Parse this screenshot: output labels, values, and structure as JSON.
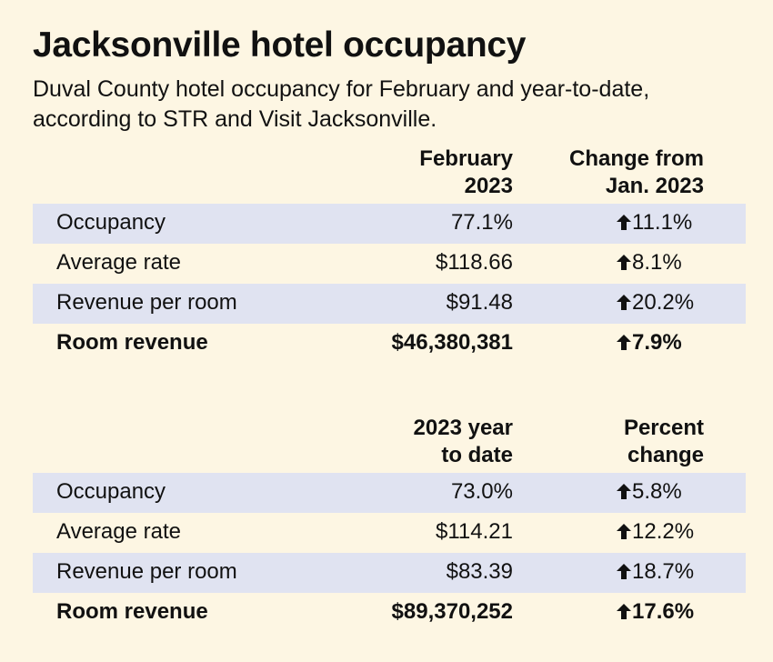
{
  "title": "Jacksonville hotel occupancy",
  "subtitle": "Duval County hotel occupancy for February and year-to-date, according to STR and Visit Jacksonville.",
  "chart_data": [
    {
      "type": "table",
      "columns": [
        "",
        "February 2023",
        "Change from Jan. 2023"
      ],
      "header_col1_line1": "February",
      "header_col1_line2": "2023",
      "header_col2_line1": "Change from",
      "header_col2_line2": "Jan. 2023",
      "rows": [
        {
          "label": "Occupancy",
          "value": "77.1%",
          "change": "11.1%",
          "direction": "up"
        },
        {
          "label": "Average rate",
          "value": "$118.66",
          "change": "8.1%",
          "direction": "up"
        },
        {
          "label": "Revenue per room",
          "value": "$91.48",
          "change": "20.2%",
          "direction": "up"
        },
        {
          "label": "Room revenue",
          "value": "$46,380,381",
          "change": "7.9%",
          "direction": "up"
        }
      ]
    },
    {
      "type": "table",
      "columns": [
        "",
        "2023 year to date",
        "Percent change"
      ],
      "header_col1_line1": "2023 year",
      "header_col1_line2": "to date",
      "header_col2_line1": "Percent",
      "header_col2_line2": "change",
      "rows": [
        {
          "label": "Occupancy",
          "value": "73.0%",
          "change": "5.8%",
          "direction": "up"
        },
        {
          "label": "Average rate",
          "value": "$114.21",
          "change": "12.2%",
          "direction": "up"
        },
        {
          "label": "Revenue per room",
          "value": "$83.39",
          "change": "18.7%",
          "direction": "up"
        },
        {
          "label": "Room revenue",
          "value": "$89,370,252",
          "change": "17.6%",
          "direction": "up"
        }
      ]
    }
  ],
  "colors": {
    "background": "#fdf6e3",
    "row_shade": "#e0e3f1",
    "text": "#111111"
  },
  "icons": {
    "change": "up-arrow-icon"
  }
}
